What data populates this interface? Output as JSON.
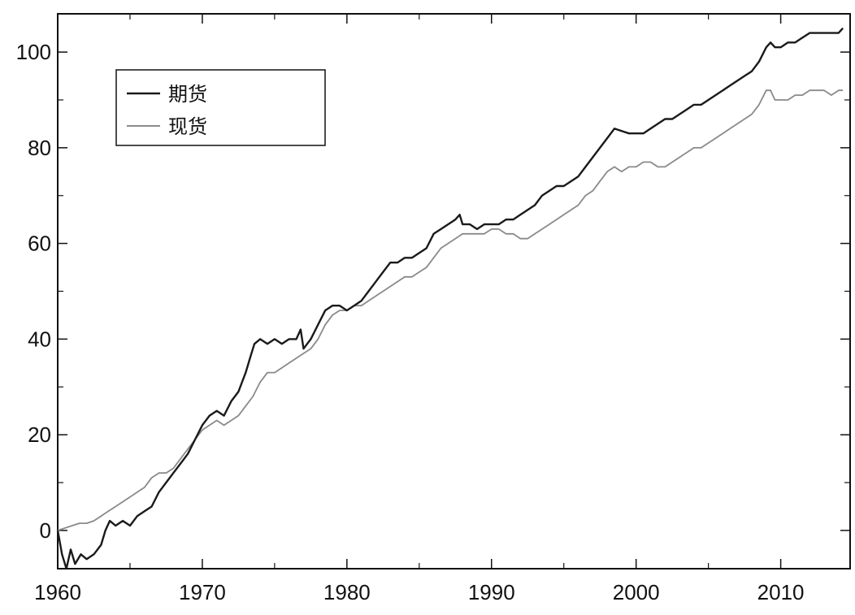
{
  "chart_data": {
    "type": "line",
    "title": "",
    "xlabel": "",
    "ylabel": "",
    "xlim": [
      1960,
      2014.8
    ],
    "ylim": [
      -8,
      108
    ],
    "xticks": [
      1960,
      1970,
      1980,
      1990,
      2000,
      2010
    ],
    "yticks": [
      0,
      20,
      40,
      60,
      80,
      100
    ],
    "grid": false,
    "legend_position": "top-left",
    "series": [
      {
        "name": "期货",
        "color": "#1a1a1a",
        "points": [
          [
            1960.0,
            0
          ],
          [
            1960.3,
            -5
          ],
          [
            1960.6,
            -8
          ],
          [
            1960.9,
            -4
          ],
          [
            1961.2,
            -7
          ],
          [
            1961.6,
            -5
          ],
          [
            1962.0,
            -6
          ],
          [
            1962.5,
            -5
          ],
          [
            1963.0,
            -3
          ],
          [
            1963.3,
            0
          ],
          [
            1963.6,
            2
          ],
          [
            1964.0,
            1
          ],
          [
            1964.5,
            2
          ],
          [
            1965.0,
            1
          ],
          [
            1965.5,
            3
          ],
          [
            1966.0,
            4
          ],
          [
            1966.5,
            5
          ],
          [
            1967.0,
            8
          ],
          [
            1967.5,
            10
          ],
          [
            1968.0,
            12
          ],
          [
            1968.5,
            14
          ],
          [
            1969.0,
            16
          ],
          [
            1969.5,
            19
          ],
          [
            1970.0,
            22
          ],
          [
            1970.5,
            24
          ],
          [
            1971.0,
            25
          ],
          [
            1971.5,
            24
          ],
          [
            1972.0,
            27
          ],
          [
            1972.5,
            29
          ],
          [
            1973.0,
            33
          ],
          [
            1973.3,
            36
          ],
          [
            1973.6,
            39
          ],
          [
            1974.0,
            40
          ],
          [
            1974.5,
            39
          ],
          [
            1975.0,
            40
          ],
          [
            1975.5,
            39
          ],
          [
            1976.0,
            40
          ],
          [
            1976.5,
            40
          ],
          [
            1976.8,
            42
          ],
          [
            1977.0,
            38
          ],
          [
            1977.5,
            40
          ],
          [
            1978.0,
            43
          ],
          [
            1978.5,
            46
          ],
          [
            1979.0,
            47
          ],
          [
            1979.5,
            47
          ],
          [
            1980.0,
            46
          ],
          [
            1980.5,
            47
          ],
          [
            1981.0,
            48
          ],
          [
            1981.5,
            50
          ],
          [
            1982.0,
            52
          ],
          [
            1982.5,
            54
          ],
          [
            1983.0,
            56
          ],
          [
            1983.5,
            56
          ],
          [
            1984.0,
            57
          ],
          [
            1984.5,
            57
          ],
          [
            1985.0,
            58
          ],
          [
            1985.5,
            59
          ],
          [
            1986.0,
            62
          ],
          [
            1986.5,
            63
          ],
          [
            1987.0,
            64
          ],
          [
            1987.5,
            65
          ],
          [
            1987.8,
            66
          ],
          [
            1988.0,
            64
          ],
          [
            1988.5,
            64
          ],
          [
            1989.0,
            63
          ],
          [
            1989.5,
            64
          ],
          [
            1990.0,
            64
          ],
          [
            1990.5,
            64
          ],
          [
            1991.0,
            65
          ],
          [
            1991.5,
            65
          ],
          [
            1992.0,
            66
          ],
          [
            1992.5,
            67
          ],
          [
            1993.0,
            68
          ],
          [
            1993.5,
            70
          ],
          [
            1994.0,
            71
          ],
          [
            1994.5,
            72
          ],
          [
            1995.0,
            72
          ],
          [
            1995.5,
            73
          ],
          [
            1996.0,
            74
          ],
          [
            1996.5,
            76
          ],
          [
            1997.0,
            78
          ],
          [
            1997.5,
            80
          ],
          [
            1998.0,
            82
          ],
          [
            1998.5,
            84
          ],
          [
            1999.0,
            83.5
          ],
          [
            1999.5,
            83
          ],
          [
            2000.0,
            83
          ],
          [
            2000.5,
            83
          ],
          [
            2001.0,
            84
          ],
          [
            2001.5,
            85
          ],
          [
            2002.0,
            86
          ],
          [
            2002.5,
            86
          ],
          [
            2003.0,
            87
          ],
          [
            2003.5,
            88
          ],
          [
            2004.0,
            89
          ],
          [
            2004.5,
            89
          ],
          [
            2005.0,
            90
          ],
          [
            2005.5,
            91
          ],
          [
            2006.0,
            92
          ],
          [
            2006.5,
            93
          ],
          [
            2007.0,
            94
          ],
          [
            2007.5,
            95
          ],
          [
            2008.0,
            96
          ],
          [
            2008.5,
            98
          ],
          [
            2009.0,
            101
          ],
          [
            2009.3,
            102
          ],
          [
            2009.6,
            101
          ],
          [
            2010.0,
            101
          ],
          [
            2010.5,
            102
          ],
          [
            2011.0,
            102
          ],
          [
            2011.5,
            103
          ],
          [
            2012.0,
            104
          ],
          [
            2012.5,
            104
          ],
          [
            2013.0,
            104
          ],
          [
            2013.5,
            104
          ],
          [
            2014.0,
            104
          ],
          [
            2014.3,
            105
          ]
        ]
      },
      {
        "name": "现货",
        "color": "#8a8a8a",
        "points": [
          [
            1960.0,
            0
          ],
          [
            1960.5,
            0.5
          ],
          [
            1961.0,
            1
          ],
          [
            1961.5,
            1.5
          ],
          [
            1962.0,
            1.5
          ],
          [
            1962.5,
            2
          ],
          [
            1963.0,
            3
          ],
          [
            1963.5,
            4
          ],
          [
            1964.0,
            5
          ],
          [
            1964.5,
            6
          ],
          [
            1965.0,
            7
          ],
          [
            1965.5,
            8
          ],
          [
            1966.0,
            9
          ],
          [
            1966.5,
            11
          ],
          [
            1967.0,
            12
          ],
          [
            1967.5,
            12
          ],
          [
            1968.0,
            13
          ],
          [
            1968.5,
            15
          ],
          [
            1969.0,
            17
          ],
          [
            1969.5,
            19
          ],
          [
            1970.0,
            21
          ],
          [
            1970.5,
            22
          ],
          [
            1971.0,
            23
          ],
          [
            1971.5,
            22
          ],
          [
            1972.0,
            23
          ],
          [
            1972.5,
            24
          ],
          [
            1973.0,
            26
          ],
          [
            1973.5,
            28
          ],
          [
            1974.0,
            31
          ],
          [
            1974.5,
            33
          ],
          [
            1975.0,
            33
          ],
          [
            1975.5,
            34
          ],
          [
            1976.0,
            35
          ],
          [
            1976.5,
            36
          ],
          [
            1977.0,
            37
          ],
          [
            1977.5,
            38
          ],
          [
            1978.0,
            40
          ],
          [
            1978.5,
            43
          ],
          [
            1979.0,
            45
          ],
          [
            1979.5,
            46
          ],
          [
            1980.0,
            46
          ],
          [
            1980.5,
            47
          ],
          [
            1981.0,
            47
          ],
          [
            1981.5,
            48
          ],
          [
            1982.0,
            49
          ],
          [
            1982.5,
            50
          ],
          [
            1983.0,
            51
          ],
          [
            1983.5,
            52
          ],
          [
            1984.0,
            53
          ],
          [
            1984.5,
            53
          ],
          [
            1985.0,
            54
          ],
          [
            1985.5,
            55
          ],
          [
            1986.0,
            57
          ],
          [
            1986.5,
            59
          ],
          [
            1987.0,
            60
          ],
          [
            1987.5,
            61
          ],
          [
            1988.0,
            62
          ],
          [
            1988.5,
            62
          ],
          [
            1989.0,
            62
          ],
          [
            1989.5,
            62
          ],
          [
            1990.0,
            63
          ],
          [
            1990.5,
            63
          ],
          [
            1991.0,
            62
          ],
          [
            1991.5,
            62
          ],
          [
            1992.0,
            61
          ],
          [
            1992.5,
            61
          ],
          [
            1993.0,
            62
          ],
          [
            1993.5,
            63
          ],
          [
            1994.0,
            64
          ],
          [
            1994.5,
            65
          ],
          [
            1995.0,
            66
          ],
          [
            1995.5,
            67
          ],
          [
            1996.0,
            68
          ],
          [
            1996.5,
            70
          ],
          [
            1997.0,
            71
          ],
          [
            1997.5,
            73
          ],
          [
            1998.0,
            75
          ],
          [
            1998.5,
            76
          ],
          [
            1999.0,
            75
          ],
          [
            1999.5,
            76
          ],
          [
            2000.0,
            76
          ],
          [
            2000.5,
            77
          ],
          [
            2001.0,
            77
          ],
          [
            2001.5,
            76
          ],
          [
            2002.0,
            76
          ],
          [
            2002.5,
            77
          ],
          [
            2003.0,
            78
          ],
          [
            2003.5,
            79
          ],
          [
            2004.0,
            80
          ],
          [
            2004.5,
            80
          ],
          [
            2005.0,
            81
          ],
          [
            2005.5,
            82
          ],
          [
            2006.0,
            83
          ],
          [
            2006.5,
            84
          ],
          [
            2007.0,
            85
          ],
          [
            2007.5,
            86
          ],
          [
            2008.0,
            87
          ],
          [
            2008.5,
            89
          ],
          [
            2009.0,
            92
          ],
          [
            2009.3,
            92
          ],
          [
            2009.6,
            90
          ],
          [
            2010.0,
            90
          ],
          [
            2010.5,
            90
          ],
          [
            2011.0,
            91
          ],
          [
            2011.5,
            91
          ],
          [
            2012.0,
            92
          ],
          [
            2012.5,
            92
          ],
          [
            2013.0,
            92
          ],
          [
            2013.5,
            91
          ],
          [
            2014.0,
            92
          ],
          [
            2014.3,
            92
          ]
        ]
      }
    ]
  }
}
